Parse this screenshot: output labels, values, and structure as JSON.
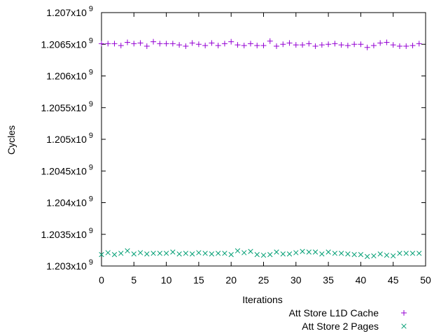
{
  "chart_data": {
    "type": "scatter",
    "xlabel": "Iterations",
    "ylabel": "Cycles",
    "xlim": [
      0,
      50
    ],
    "ylim": [
      1203000000.0,
      1207000000.0
    ],
    "x_ticks": [
      {
        "value": 0,
        "label": "0"
      },
      {
        "value": 5,
        "label": "5"
      },
      {
        "value": 10,
        "label": "10"
      },
      {
        "value": 15,
        "label": "15"
      },
      {
        "value": 20,
        "label": "20"
      },
      {
        "value": 25,
        "label": "25"
      },
      {
        "value": 30,
        "label": "30"
      },
      {
        "value": 35,
        "label": "35"
      },
      {
        "value": 40,
        "label": "40"
      },
      {
        "value": 45,
        "label": "45"
      },
      {
        "value": 50,
        "label": "50"
      }
    ],
    "y_ticks": [
      {
        "value": 1203000000.0,
        "mantissa": "1.203x10",
        "exp": "9"
      },
      {
        "value": 1203500000.0,
        "mantissa": "1.2035x10",
        "exp": "9"
      },
      {
        "value": 1204000000.0,
        "mantissa": "1.204x10",
        "exp": "9"
      },
      {
        "value": 1204500000.0,
        "mantissa": "1.2045x10",
        "exp": "9"
      },
      {
        "value": 1205000000.0,
        "mantissa": "1.205x10",
        "exp": "9"
      },
      {
        "value": 1205500000.0,
        "mantissa": "1.2055x10",
        "exp": "9"
      },
      {
        "value": 1206000000.0,
        "mantissa": "1.206x10",
        "exp": "9"
      },
      {
        "value": 1206500000.0,
        "mantissa": "1.2065x10",
        "exp": "9"
      },
      {
        "value": 1207000000.0,
        "mantissa": "1.207x10",
        "exp": "9"
      }
    ],
    "grid": false,
    "legend_position": "bottom-right, outside plot",
    "series": [
      {
        "name": "Att Store L1D Cache",
        "marker": "plus",
        "color": "#9400d3",
        "x": [
          0,
          1,
          2,
          3,
          4,
          5,
          6,
          7,
          8,
          9,
          10,
          11,
          12,
          13,
          14,
          15,
          16,
          17,
          18,
          19,
          20,
          21,
          22,
          23,
          24,
          25,
          26,
          27,
          28,
          29,
          30,
          31,
          32,
          33,
          34,
          35,
          36,
          37,
          38,
          39,
          40,
          41,
          42,
          43,
          44,
          45,
          46,
          47,
          48,
          49
        ],
        "y": [
          1206510000.0,
          1206510000.0,
          1206510000.0,
          1206480000.0,
          1206530000.0,
          1206510000.0,
          1206520000.0,
          1206470000.0,
          1206540000.0,
          1206510000.0,
          1206510000.0,
          1206510000.0,
          1206490000.0,
          1206470000.0,
          1206520000.0,
          1206500000.0,
          1206480000.0,
          1206520000.0,
          1206480000.0,
          1206510000.0,
          1206540000.0,
          1206490000.0,
          1206480000.0,
          1206510000.0,
          1206480000.0,
          1206480000.0,
          1206550000.0,
          1206470000.0,
          1206500000.0,
          1206520000.0,
          1206490000.0,
          1206490000.0,
          1206510000.0,
          1206470000.0,
          1206490000.0,
          1206500000.0,
          1206510000.0,
          1206490000.0,
          1206480000.0,
          1206500000.0,
          1206500000.0,
          1206450000.0,
          1206480000.0,
          1206520000.0,
          1206530000.0,
          1206490000.0,
          1206470000.0,
          1206470000.0,
          1206480000.0,
          1206510000.0
        ]
      },
      {
        "name": "Att Store 2 Pages",
        "marker": "cross",
        "color": "#009e73",
        "x": [
          0,
          1,
          2,
          3,
          4,
          5,
          6,
          7,
          8,
          9,
          10,
          11,
          12,
          13,
          14,
          15,
          16,
          17,
          18,
          19,
          20,
          21,
          22,
          23,
          24,
          25,
          26,
          27,
          28,
          29,
          30,
          31,
          32,
          33,
          34,
          35,
          36,
          37,
          38,
          39,
          40,
          41,
          42,
          43,
          44,
          45,
          46,
          47,
          48,
          49
        ],
        "y": [
          1203180000.0,
          1203210000.0,
          1203180000.0,
          1203200000.0,
          1203240000.0,
          1203190000.0,
          1203210000.0,
          1203190000.0,
          1203200000.0,
          1203200000.0,
          1203200000.0,
          1203220000.0,
          1203190000.0,
          1203200000.0,
          1203190000.0,
          1203210000.0,
          1203200000.0,
          1203190000.0,
          1203200000.0,
          1203200000.0,
          1203180000.0,
          1203240000.0,
          1203210000.0,
          1203230000.0,
          1203180000.0,
          1203170000.0,
          1203180000.0,
          1203220000.0,
          1203190000.0,
          1203190000.0,
          1203210000.0,
          1203230000.0,
          1203220000.0,
          1203220000.0,
          1203190000.0,
          1203220000.0,
          1203200000.0,
          1203200000.0,
          1203190000.0,
          1203180000.0,
          1203180000.0,
          1203150000.0,
          1203160000.0,
          1203190000.0,
          1203170000.0,
          1203160000.0,
          1203200000.0,
          1203200000.0,
          1203200000.0,
          1203200000.0
        ]
      }
    ]
  }
}
